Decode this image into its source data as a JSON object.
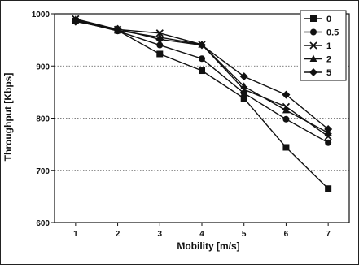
{
  "chart_data": {
    "type": "line",
    "title": "",
    "xlabel": "Mobility [m/s]",
    "ylabel": "Throughput [Kbps]",
    "x": [
      1,
      2,
      3,
      4,
      5,
      6,
      7
    ],
    "xlim": [
      0.5,
      7.5
    ],
    "ylim": [
      600,
      1000
    ],
    "yticks": [
      600,
      700,
      800,
      900,
      1000
    ],
    "xticks": [
      1,
      2,
      3,
      4,
      5,
      6,
      7
    ],
    "grid": "horizontal dotted",
    "legend_position": "top-right",
    "series": [
      {
        "name": "0",
        "marker": "square",
        "values": [
          986,
          968,
          923,
          891,
          838,
          744,
          665
        ]
      },
      {
        "name": "0.5",
        "marker": "circle",
        "values": [
          987,
          967,
          940,
          914,
          848,
          798,
          753
        ]
      },
      {
        "name": "1",
        "marker": "x",
        "values": [
          990,
          970,
          963,
          941,
          855,
          822,
          765
        ]
      },
      {
        "name": "2",
        "marker": "triangle",
        "values": [
          989,
          968,
          955,
          941,
          861,
          815,
          772
        ]
      },
      {
        "name": "5",
        "marker": "diamond",
        "values": [
          985,
          971,
          951,
          940,
          880,
          845,
          779
        ]
      }
    ]
  }
}
